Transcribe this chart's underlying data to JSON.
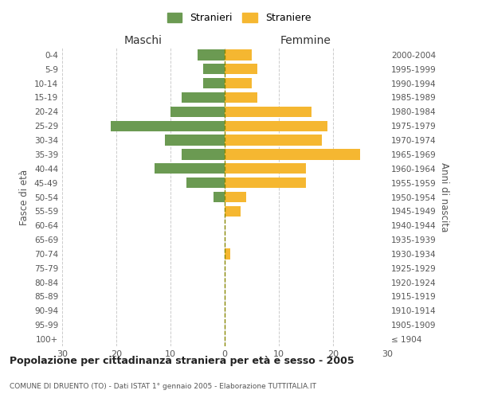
{
  "age_groups": [
    "100+",
    "95-99",
    "90-94",
    "85-89",
    "80-84",
    "75-79",
    "70-74",
    "65-69",
    "60-64",
    "55-59",
    "50-54",
    "45-49",
    "40-44",
    "35-39",
    "30-34",
    "25-29",
    "20-24",
    "15-19",
    "10-14",
    "5-9",
    "0-4"
  ],
  "birth_years": [
    "≤ 1904",
    "1905-1909",
    "1910-1914",
    "1915-1919",
    "1920-1924",
    "1925-1929",
    "1930-1934",
    "1935-1939",
    "1940-1944",
    "1945-1949",
    "1950-1954",
    "1955-1959",
    "1960-1964",
    "1965-1969",
    "1970-1974",
    "1975-1979",
    "1980-1984",
    "1985-1989",
    "1990-1994",
    "1995-1999",
    "2000-2004"
  ],
  "maschi": [
    0,
    0,
    0,
    0,
    0,
    0,
    0,
    0,
    0,
    0,
    2,
    7,
    13,
    8,
    11,
    21,
    10,
    8,
    4,
    4,
    5
  ],
  "femmine": [
    0,
    0,
    0,
    0,
    0,
    0,
    1,
    0,
    0,
    3,
    4,
    15,
    15,
    25,
    18,
    19,
    16,
    6,
    5,
    6,
    5
  ],
  "maschi_color": "#6b9a52",
  "femmine_color": "#f5b731",
  "title": "Popolazione per cittadinanza straniera per età e sesso - 2005",
  "subtitle": "COMUNE DI DRUENTO (TO) - Dati ISTAT 1° gennaio 2005 - Elaborazione TUTTITALIA.IT",
  "ylabel_left": "Fasce di età",
  "ylabel_right": "Anni di nascita",
  "xlabel_maschi": "Maschi",
  "xlabel_femmine": "Femmine",
  "legend_stranieri": "Stranieri",
  "legend_straniere": "Straniere",
  "xlim": 30,
  "background_color": "#ffffff",
  "grid_color": "#cccccc"
}
